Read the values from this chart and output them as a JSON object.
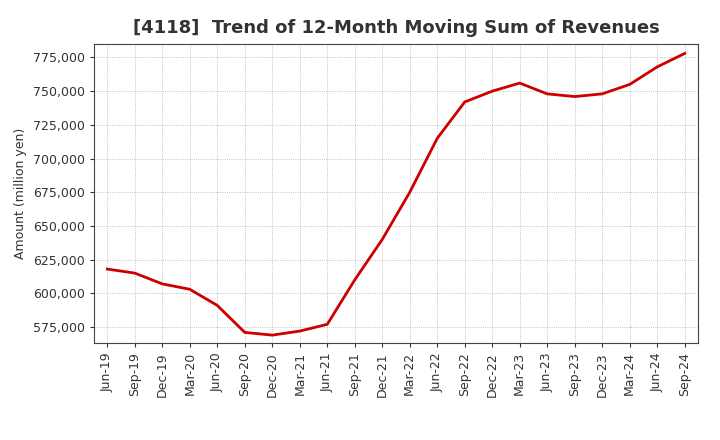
{
  "title": "[4118]  Trend of 12-Month Moving Sum of Revenues",
  "ylabel": "Amount (million yen)",
  "line_color": "#cc0000",
  "line_width": 2.0,
  "background_color": "#ffffff",
  "plot_background": "#ffffff",
  "grid_color": "#b0b0b0",
  "ylim": [
    563000,
    785000
  ],
  "yticks": [
    575000,
    600000,
    625000,
    650000,
    675000,
    700000,
    725000,
    750000,
    775000
  ],
  "x_labels": [
    "Jun-19",
    "Sep-19",
    "Dec-19",
    "Mar-20",
    "Jun-20",
    "Sep-20",
    "Dec-20",
    "Mar-21",
    "Jun-21",
    "Sep-21",
    "Dec-21",
    "Mar-22",
    "Jun-22",
    "Sep-22",
    "Dec-22",
    "Mar-23",
    "Jun-23",
    "Sep-23",
    "Dec-23",
    "Mar-24",
    "Jun-24",
    "Sep-24"
  ],
  "values": [
    618000,
    615000,
    607000,
    603000,
    591000,
    571000,
    569000,
    572000,
    577000,
    610000,
    640000,
    675000,
    715000,
    742000,
    750000,
    756000,
    748000,
    746000,
    748000,
    755000,
    768000,
    778000
  ],
  "title_fontsize": 13,
  "ylabel_fontsize": 9,
  "tick_fontsize": 9
}
